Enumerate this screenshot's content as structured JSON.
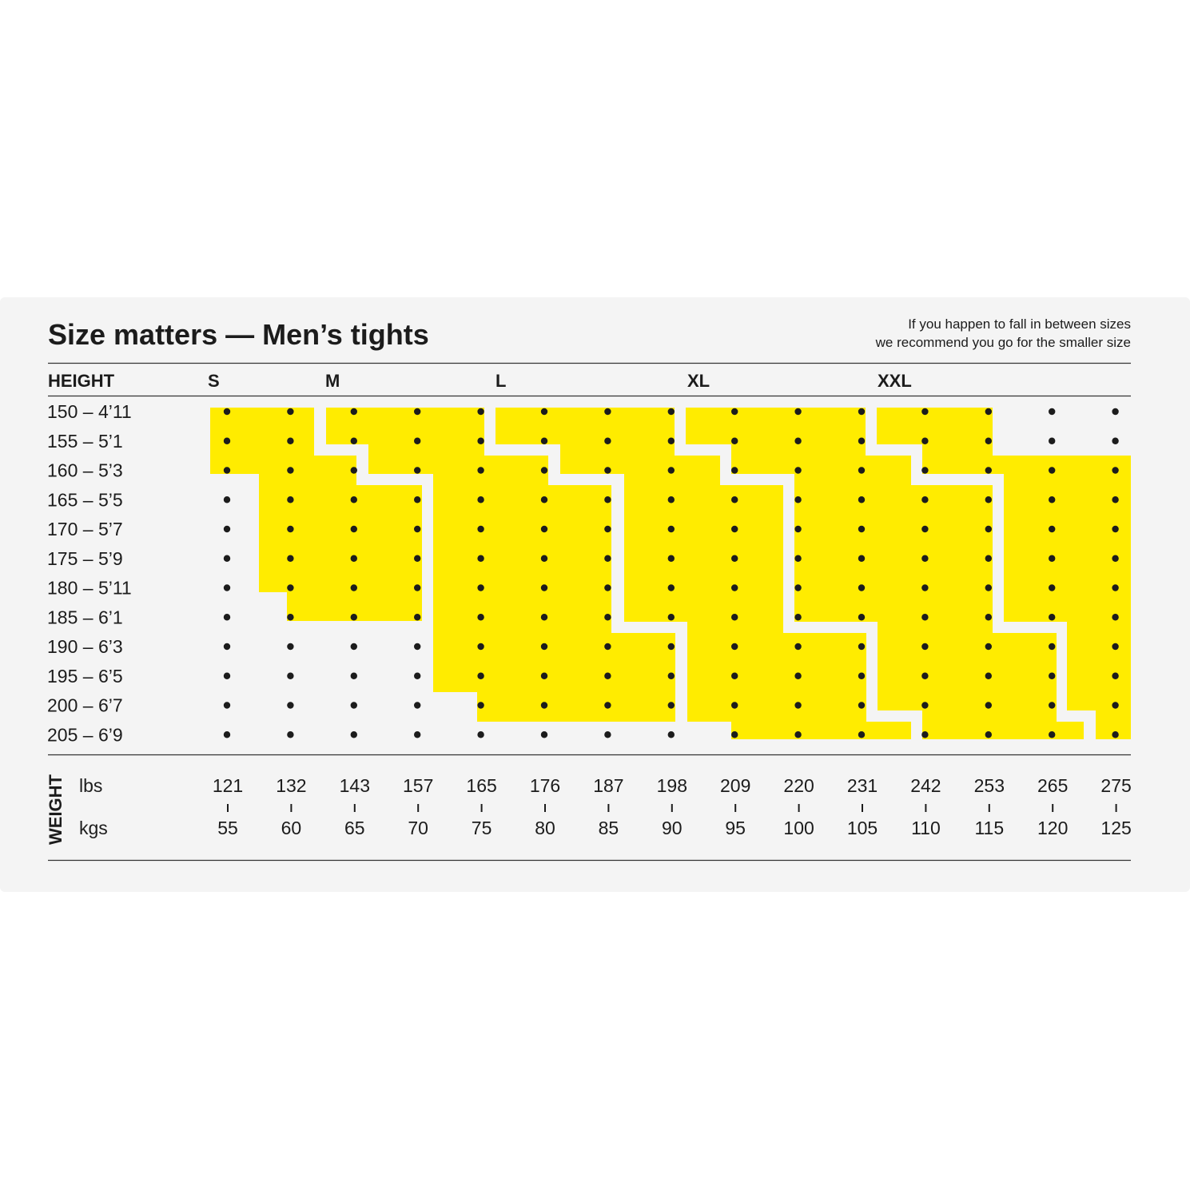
{
  "title": "Size matters — Men’s tights",
  "note": [
    "If you happen to fall in between sizes",
    "we recommend you go for the smaller size"
  ],
  "chart_data": {
    "type": "heatmap",
    "title": "Size matters — Men’s tights",
    "row_header": "HEIGHT",
    "column_header": "WEIGHT",
    "sizes": [
      "S",
      "M",
      "L",
      "XL",
      "XXL"
    ],
    "heights": [
      "150 – 4’11",
      "155 – 5’1",
      "160 – 5’3",
      "165 – 5’5",
      "170 – 5’7",
      "175 – 5’9",
      "180 – 5’11",
      "185 – 6’1",
      "190 – 6’3",
      "195 – 6’5",
      "200 – 6’7",
      "205 – 6’9"
    ],
    "weight_units": {
      "lbs": "lbs",
      "kgs": "kgs"
    },
    "weights_lbs": [
      "121",
      "132",
      "143",
      "157",
      "165",
      "176",
      "187",
      "198",
      "209",
      "220",
      "231",
      "242",
      "253",
      "265",
      "275"
    ],
    "weights_kgs": [
      "55",
      "60",
      "65",
      "70",
      "75",
      "80",
      "85",
      "90",
      "95",
      "100",
      "105",
      "110",
      "115",
      "120",
      "125"
    ],
    "highlight_color": "#ffec00",
    "dot_color": "#1c1c1c",
    "regions_kg_range_by_height_cm": {
      "S": {
        "150": [
          55,
          60
        ],
        "155": [
          55,
          60
        ],
        "160": [
          55,
          65
        ],
        "165": [
          60,
          70
        ],
        "170": [
          60,
          70
        ],
        "175": [
          60,
          70
        ],
        "180": [
          60,
          70
        ],
        "185": [
          60,
          70
        ]
      },
      "M": {
        "150": [
          65,
          75
        ],
        "155": [
          65,
          75
        ],
        "160": [
          70,
          80
        ],
        "165": [
          75,
          85
        ],
        "170": [
          75,
          85
        ],
        "175": [
          75,
          85
        ],
        "180": [
          75,
          85
        ],
        "185": [
          75,
          85
        ],
        "190": [
          75,
          90
        ],
        "195": [
          75,
          90
        ],
        "200": [
          75,
          90
        ]
      },
      "L": {
        "150": [
          80,
          90
        ],
        "155": [
          80,
          90
        ],
        "160": [
          85,
          90
        ],
        "165": [
          90,
          95
        ],
        "170": [
          90,
          95
        ],
        "175": [
          90,
          95
        ],
        "180": [
          90,
          95
        ],
        "185": [
          90,
          95
        ],
        "190": [
          95,
          105
        ],
        "195": [
          95,
          105
        ],
        "200": [
          95,
          105
        ],
        "205": [
          95,
          105
        ]
      },
      "XL": {
        "150": [
          95,
          105
        ],
        "155": [
          95,
          105
        ],
        "160": [
          95,
          105
        ],
        "165": [
          100,
          115
        ],
        "170": [
          100,
          115
        ],
        "175": [
          100,
          115
        ],
        "180": [
          100,
          115
        ],
        "185": [
          100,
          115
        ],
        "190": [
          110,
          120
        ],
        "195": [
          110,
          120
        ],
        "200": [
          110,
          120
        ],
        "205": [
          110,
          120
        ]
      },
      "XXL": {
        "150": [
          110,
          115
        ],
        "155": [
          110,
          115
        ],
        "160": [
          110,
          125
        ],
        "165": [
          120,
          125
        ],
        "170": [
          120,
          125
        ],
        "175": [
          120,
          125
        ],
        "180": [
          120,
          125
        ],
        "185": [
          120,
          125
        ],
        "190": [
          125,
          125
        ],
        "195": [
          125,
          125
        ],
        "200": [
          125,
          125
        ],
        "205": [
          125,
          125
        ]
      }
    }
  }
}
